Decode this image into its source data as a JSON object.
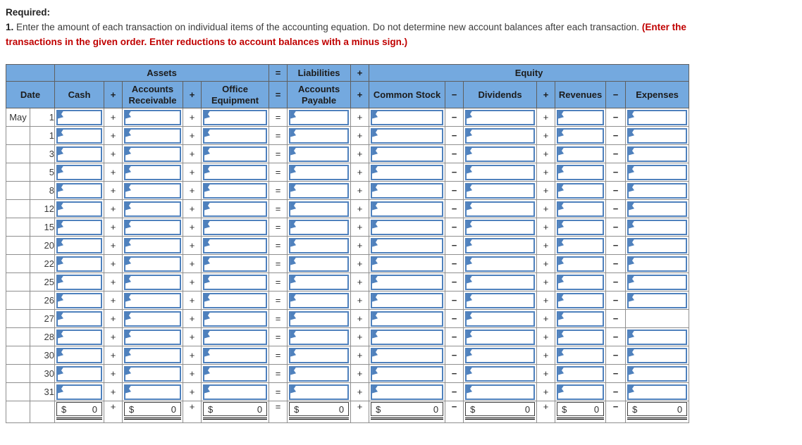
{
  "instructions": {
    "heading": "Required:",
    "step_number": "1.",
    "step_text": " Enter the amount of each transaction on individual items of the accounting equation. Do not determine new account balances after each transaction. ",
    "emphasis_text": "(Enter the transactions in the given order. Enter reductions to account balances with a minus sign.)"
  },
  "table": {
    "group_row": {
      "assets": "Assets",
      "equals": "=",
      "liabilities": "Liabilities",
      "plus": "+",
      "equity": "Equity"
    },
    "columns": {
      "date": "Date",
      "cash": "Cash",
      "accounts_receivable": "Accounts Receivable",
      "office_equipment": "Office Equipment",
      "accounts_payable": "Accounts Payable",
      "common_stock": "Common Stock",
      "dividends": "Dividends",
      "revenues": "Revenues",
      "expenses": "Expenses"
    },
    "operators": {
      "plus": "+",
      "minus": "−",
      "equals": "="
    },
    "rows": [
      {
        "month": "May",
        "day": "1"
      },
      {
        "month": "",
        "day": "1"
      },
      {
        "month": "",
        "day": "3"
      },
      {
        "month": "",
        "day": "5"
      },
      {
        "month": "",
        "day": "8"
      },
      {
        "month": "",
        "day": "12"
      },
      {
        "month": "",
        "day": "15"
      },
      {
        "month": "",
        "day": "20"
      },
      {
        "month": "",
        "day": "22"
      },
      {
        "month": "",
        "day": "25"
      },
      {
        "month": "",
        "day": "26"
      },
      {
        "month": "",
        "day": "27",
        "missing_inputs": [
          "expenses"
        ]
      },
      {
        "month": "",
        "day": "28"
      },
      {
        "month": "",
        "day": "30"
      },
      {
        "month": "",
        "day": "30"
      },
      {
        "month": "",
        "day": "31"
      }
    ],
    "totals": {
      "currency_symbol": "$",
      "cash": "0",
      "accounts_receivable": "0",
      "office_equipment": "0",
      "accounts_payable": "0",
      "common_stock": "0",
      "dividends": "0",
      "revenues": "0",
      "expenses": "0"
    }
  },
  "colors": {
    "header_fill": "#74a9df",
    "input_border": "#4f81bd",
    "emphasis_red": "#c00000",
    "grid_line": "#8f8f8f"
  }
}
